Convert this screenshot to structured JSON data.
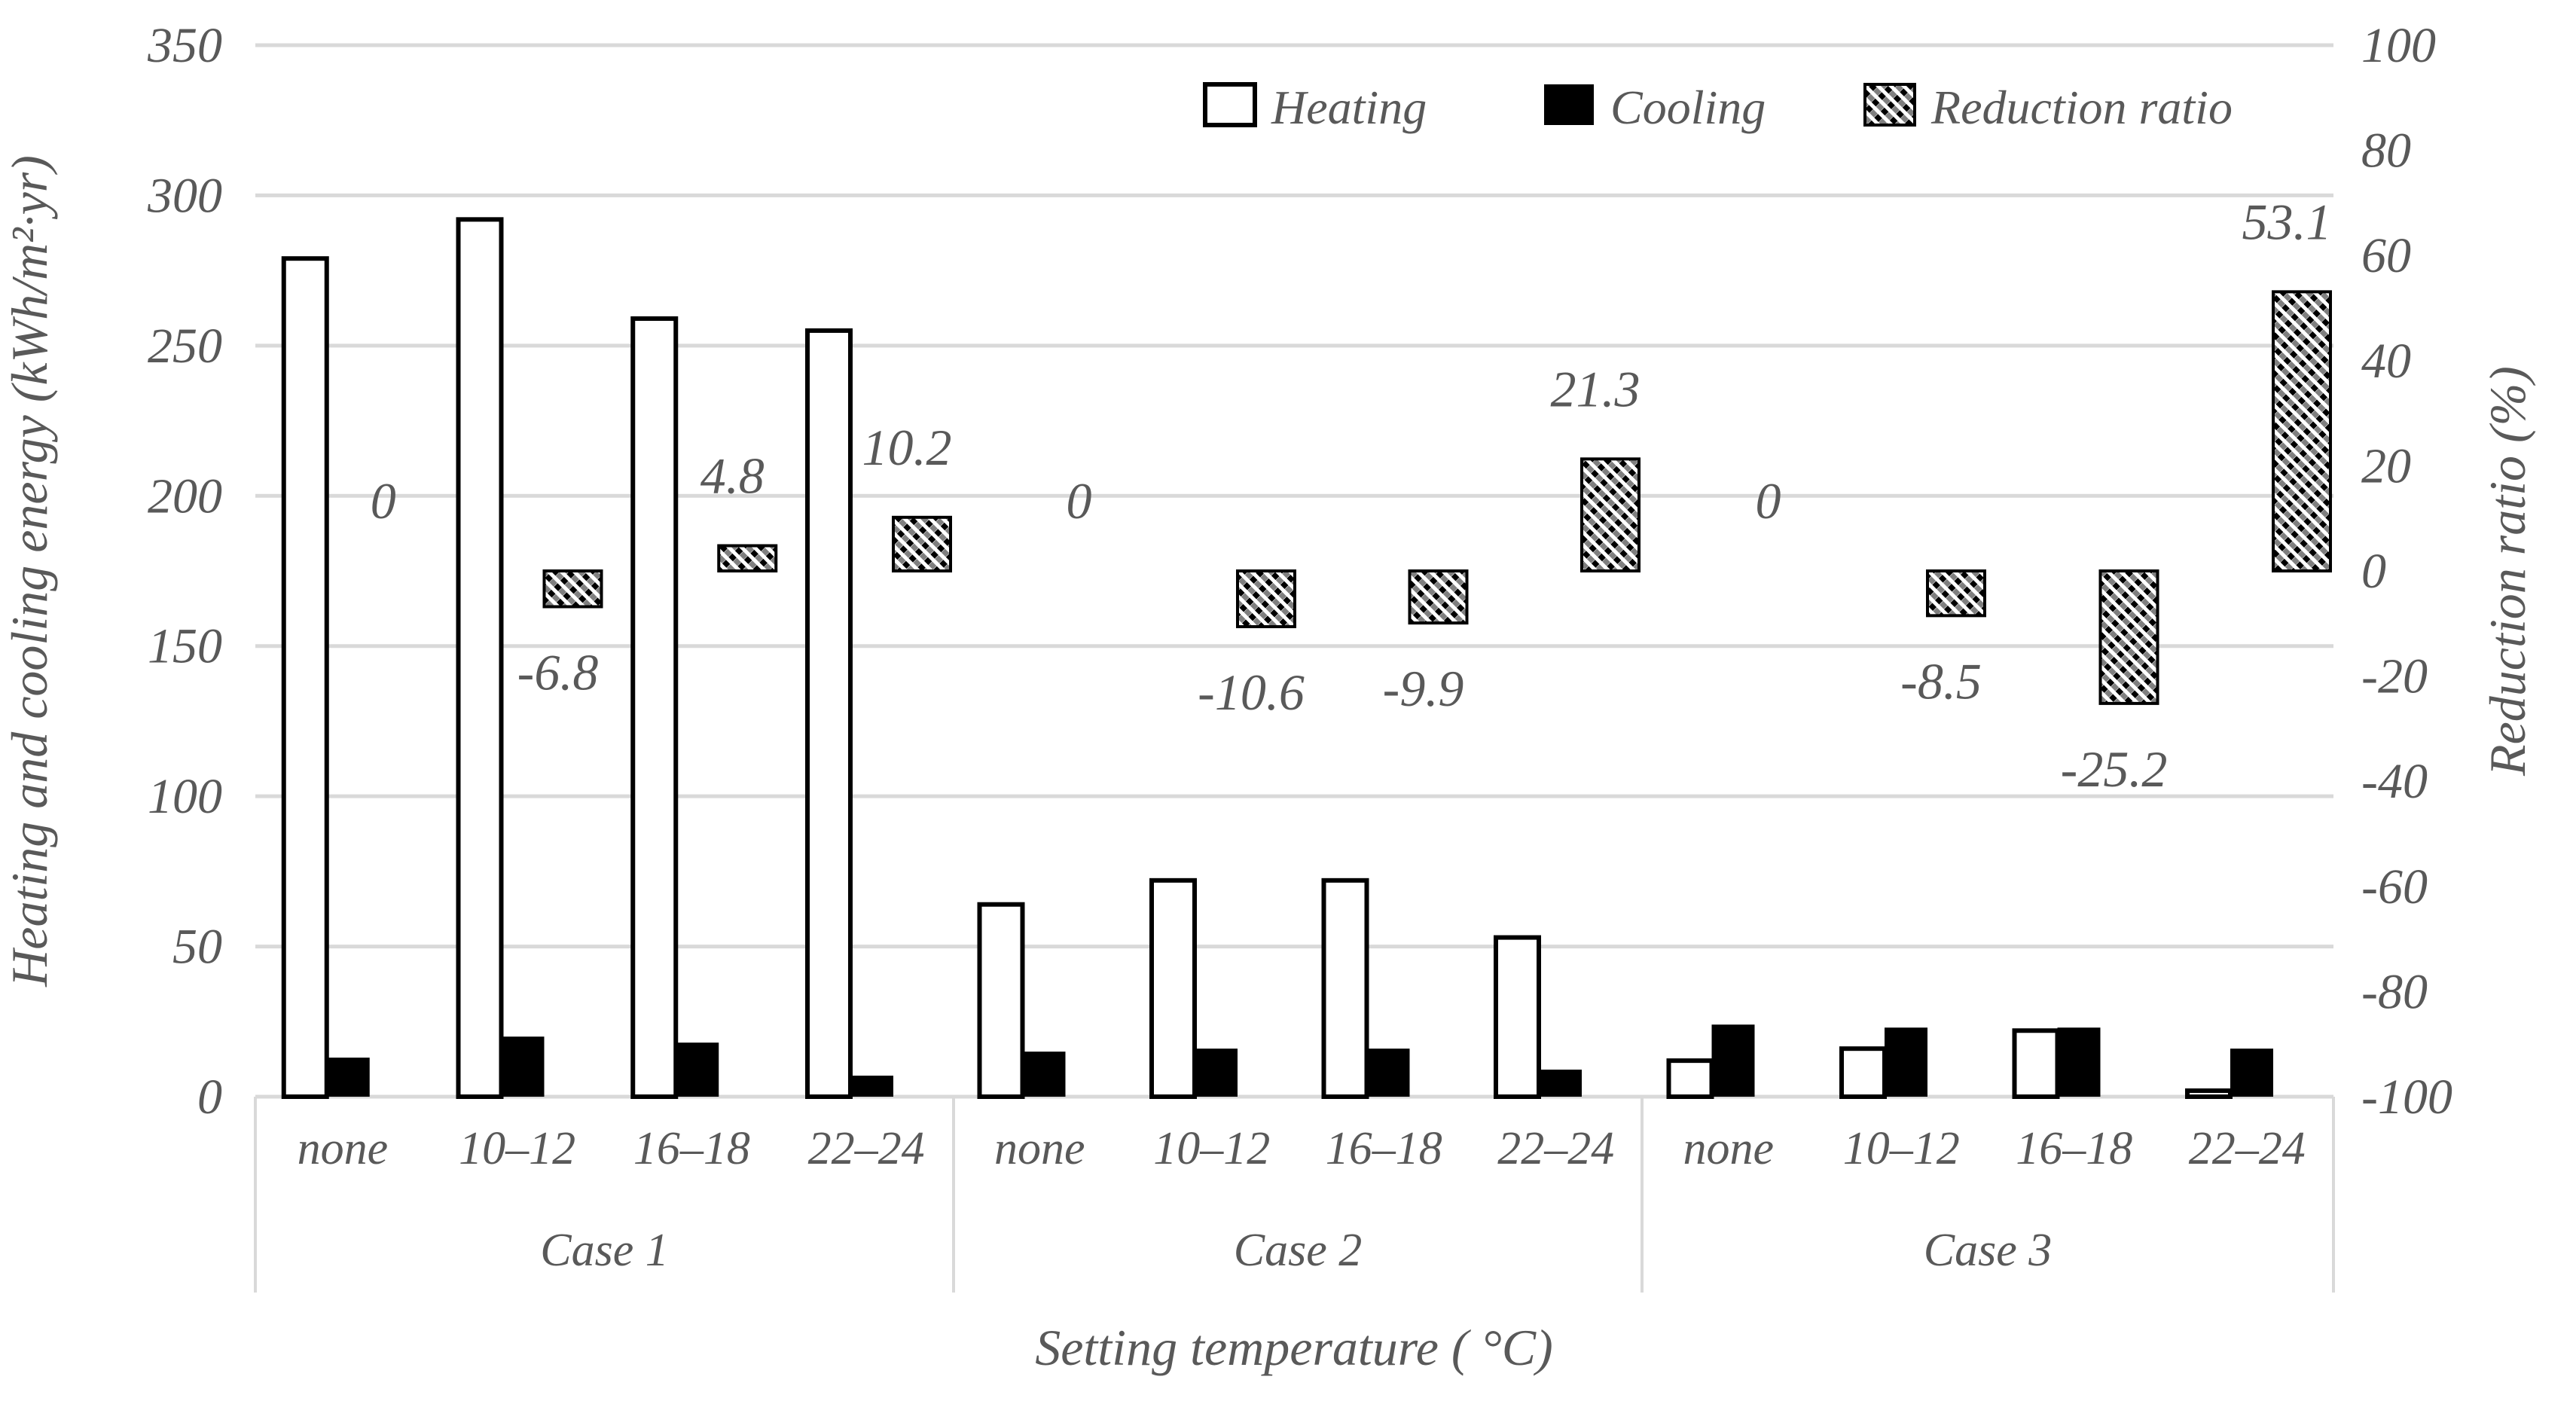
{
  "figure": {
    "background": "#ffffff",
    "text_color": "#595959",
    "gridline_color": "#d9d9d9",
    "bar_outline_color": "#000000"
  },
  "legend": {
    "items": [
      {
        "label": "Heating",
        "swatch": "white"
      },
      {
        "label": "Cooling",
        "swatch": "black"
      },
      {
        "label": "Reduction ratio",
        "swatch": "hatch"
      }
    ]
  },
  "chart_data": {
    "type": "bar",
    "title": "",
    "grid": "horizontal",
    "legend_position": "top-right-inside",
    "left_axis": {
      "title": "Heating and cooling energy (kWh/m²·yr)",
      "min": 0,
      "max": 350,
      "step": 50,
      "tick_labels": [
        "350",
        "300",
        "250",
        "200",
        "150",
        "100",
        "50",
        "0"
      ]
    },
    "right_axis": {
      "title": "Reduction ratio (%)",
      "min": -100,
      "max": 100,
      "step": 20,
      "tick_labels": [
        "100",
        "80",
        "60",
        "40",
        "20",
        "0",
        "-20",
        "-40",
        "-60",
        "-80",
        "-100"
      ]
    },
    "x_axis": {
      "title": "Setting temperature ( °C)",
      "groups": [
        {
          "label": "Case 1",
          "categories": [
            "none",
            "10–12",
            "16–18",
            "22–24"
          ]
        },
        {
          "label": "Case 2",
          "categories": [
            "none",
            "10–12",
            "16–18",
            "22–24"
          ]
        },
        {
          "label": "Case 3",
          "categories": [
            "none",
            "10–12",
            "16–18",
            "22–24"
          ]
        }
      ]
    },
    "series": [
      {
        "name": "Heating",
        "axis": "left",
        "style": "white-outline",
        "values": [
          279,
          292,
          259,
          255,
          64,
          72,
          72,
          53,
          12,
          16,
          22,
          2
        ]
      },
      {
        "name": "Cooling",
        "axis": "left",
        "style": "solid-black",
        "values": [
          13,
          20,
          18,
          7,
          15,
          16,
          16,
          9,
          24,
          23,
          23,
          16
        ]
      },
      {
        "name": "Reduction ratio",
        "axis": "right",
        "style": "hatch",
        "values": [
          0,
          -6.8,
          4.8,
          10.2,
          0,
          -10.6,
          -9.9,
          21.3,
          0,
          -8.5,
          -25.2,
          53.1
        ],
        "data_labels": [
          "0",
          "-6.8",
          "4.8",
          "10.2",
          "0",
          "-10.6",
          "-9.9",
          "21.3",
          "0",
          "-8.5",
          "-25.2",
          "53.1"
        ]
      }
    ]
  }
}
